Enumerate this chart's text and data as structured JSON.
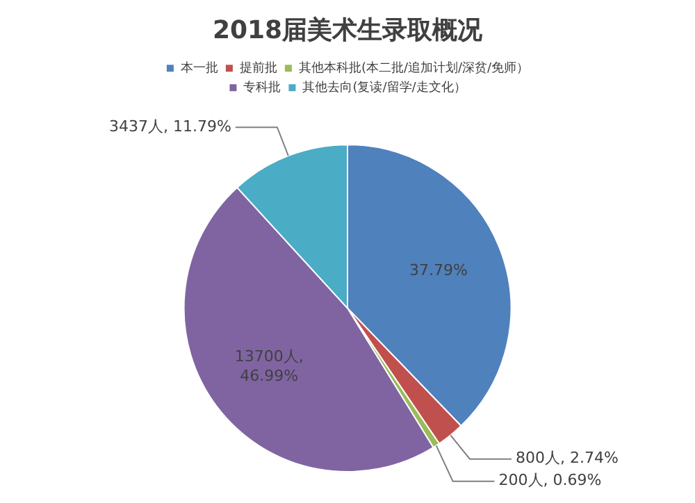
{
  "chart_data": {
    "type": "pie",
    "title": "2018届美术生录取概况",
    "categories": [
      "本一批",
      "提前批",
      "其他本科批(本二批/追加计划/深贫/免师）",
      "专科批",
      "其他去向(复读/留学/走文化）"
    ],
    "values": [
      37.79,
      2.74,
      0.69,
      46.99,
      11.79
    ],
    "colors": [
      "#4f81bd",
      "#c0504d",
      "#9bbb59",
      "#8064a2",
      "#4bacc6"
    ],
    "value_labels": [
      "37.79%",
      "800人, 2.74%",
      "200人, 0.69%",
      "13700人, 46.99%",
      "3437人, 11.79%"
    ],
    "legend": "top"
  }
}
